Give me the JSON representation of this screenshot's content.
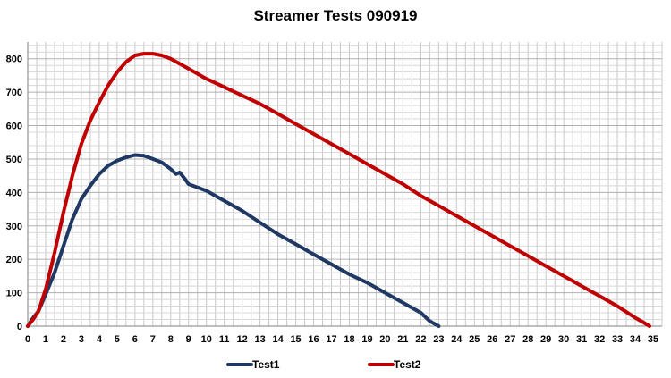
{
  "chart_data": {
    "type": "line",
    "title": "Streamer Tests 090919",
    "xlabel": "",
    "ylabel": "",
    "xlim": [
      0,
      35.5
    ],
    "ylim": [
      0,
      850
    ],
    "xticks": [
      0,
      1,
      2,
      3,
      4,
      5,
      6,
      7,
      8,
      9,
      10,
      11,
      12,
      13,
      14,
      15,
      16,
      17,
      18,
      19,
      20,
      21,
      22,
      23,
      24,
      25,
      26,
      27,
      28,
      29,
      30,
      31,
      32,
      33,
      34,
      35
    ],
    "yticks": [
      0,
      100,
      200,
      300,
      400,
      500,
      600,
      700,
      800
    ],
    "grid": true,
    "legend_position": "bottom",
    "series": [
      {
        "name": "Test1",
        "color": "#1f3864",
        "points": [
          [
            0,
            0
          ],
          [
            0.3,
            25
          ],
          [
            0.6,
            45
          ],
          [
            1,
            95
          ],
          [
            1.5,
            160
          ],
          [
            2,
            240
          ],
          [
            2.5,
            320
          ],
          [
            3,
            380
          ],
          [
            3.5,
            420
          ],
          [
            4,
            455
          ],
          [
            4.5,
            480
          ],
          [
            5,
            495
          ],
          [
            5.5,
            505
          ],
          [
            6,
            512
          ],
          [
            6.5,
            510
          ],
          [
            7,
            500
          ],
          [
            7.5,
            490
          ],
          [
            8,
            470
          ],
          [
            8.3,
            455
          ],
          [
            8.5,
            460
          ],
          [
            8.8,
            440
          ],
          [
            9,
            425
          ],
          [
            10,
            405
          ],
          [
            11,
            375
          ],
          [
            12,
            345
          ],
          [
            13,
            310
          ],
          [
            14,
            275
          ],
          [
            15,
            245
          ],
          [
            16,
            215
          ],
          [
            17,
            185
          ],
          [
            18,
            155
          ],
          [
            19,
            130
          ],
          [
            20,
            100
          ],
          [
            21,
            70
          ],
          [
            22,
            40
          ],
          [
            22.5,
            15
          ],
          [
            23,
            0
          ]
        ]
      },
      {
        "name": "Test2",
        "color": "#c00000",
        "points": [
          [
            0,
            0
          ],
          [
            0.3,
            20
          ],
          [
            0.6,
            45
          ],
          [
            1,
            110
          ],
          [
            1.5,
            220
          ],
          [
            2,
            340
          ],
          [
            2.5,
            450
          ],
          [
            3,
            545
          ],
          [
            3.5,
            615
          ],
          [
            4,
            670
          ],
          [
            4.5,
            720
          ],
          [
            5,
            760
          ],
          [
            5.5,
            790
          ],
          [
            6,
            810
          ],
          [
            6.5,
            815
          ],
          [
            7,
            815
          ],
          [
            7.5,
            810
          ],
          [
            8,
            800
          ],
          [
            9,
            770
          ],
          [
            10,
            740
          ],
          [
            11,
            715
          ],
          [
            12,
            690
          ],
          [
            13,
            665
          ],
          [
            14,
            635
          ],
          [
            15,
            605
          ],
          [
            16,
            575
          ],
          [
            17,
            545
          ],
          [
            18,
            515
          ],
          [
            19,
            485
          ],
          [
            20,
            455
          ],
          [
            21,
            425
          ],
          [
            22,
            390
          ],
          [
            23,
            360
          ],
          [
            24,
            330
          ],
          [
            25,
            300
          ],
          [
            26,
            270
          ],
          [
            27,
            240
          ],
          [
            28,
            210
          ],
          [
            29,
            180
          ],
          [
            30,
            150
          ],
          [
            31,
            120
          ],
          [
            32,
            90
          ],
          [
            33,
            60
          ],
          [
            34,
            25
          ],
          [
            34.5,
            10
          ],
          [
            34.8,
            0
          ]
        ]
      }
    ]
  }
}
